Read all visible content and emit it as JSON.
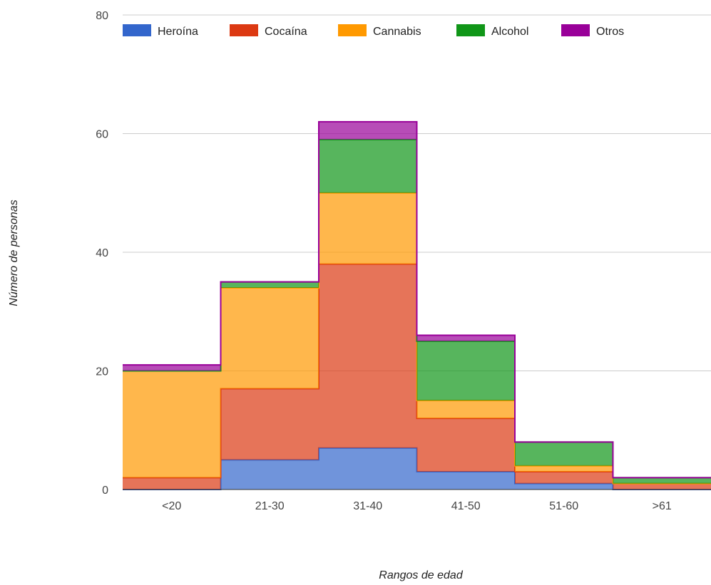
{
  "chart_data": {
    "type": "area",
    "stacked": true,
    "stepped": true,
    "categories": [
      "<20",
      "21-30",
      "31-40",
      "41-50",
      "51-60",
      ">61"
    ],
    "series": [
      {
        "name": "Heroína",
        "color": "#3366cc",
        "values": [
          0,
          5,
          7,
          3,
          1,
          0
        ]
      },
      {
        "name": "Cocaína",
        "color": "#dc3912",
        "values": [
          2,
          12,
          31,
          9,
          2,
          1
        ]
      },
      {
        "name": "Cannabis",
        "color": "#ff9900",
        "values": [
          18,
          17,
          12,
          3,
          1,
          0
        ]
      },
      {
        "name": "Alcohol",
        "color": "#109618",
        "values": [
          0,
          1,
          9,
          10,
          4,
          1
        ]
      },
      {
        "name": "Otros",
        "color": "#990099",
        "values": [
          1,
          0,
          3,
          1,
          0,
          0
        ]
      }
    ],
    "title": "",
    "xlabel": "Rangos de edad",
    "ylabel": "Número de personas",
    "ylim": [
      0,
      80
    ],
    "yticks": [
      "0",
      "20",
      "40",
      "60",
      "80"
    ],
    "grid": true,
    "legend_position": "top"
  }
}
